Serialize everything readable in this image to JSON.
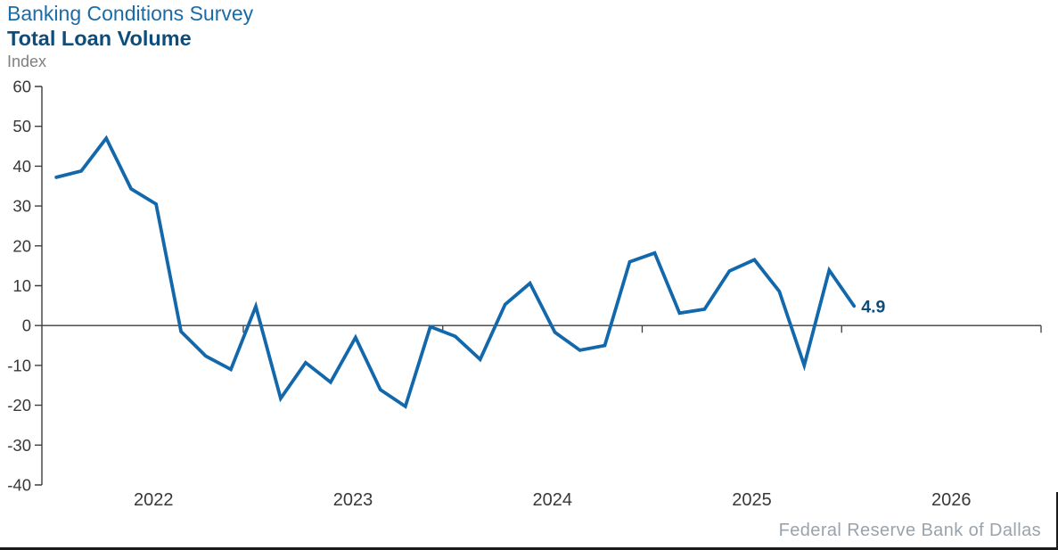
{
  "header": {
    "suptitle": "Banking Conditions Survey",
    "title": "Total Loan Volume",
    "unit_label": "Index"
  },
  "footer": {
    "source": "Federal Reserve Bank of Dallas"
  },
  "colors": {
    "suptitle": "#1b6ba7",
    "title": "#0e4d7a",
    "unit_text": "#7f7f7f",
    "axis": "#3d3d3d",
    "tick_text": "#383838",
    "line": "#1268ab",
    "end_label": "#0e4d7a",
    "footer_text": "#9aa3ab",
    "border": "#1a1a1a"
  },
  "chart_data": {
    "type": "line",
    "title": "Total Loan Volume",
    "subtitle": "Banking Conditions Survey",
    "ylabel": "Index",
    "ylim": [
      -40,
      60
    ],
    "ytick_step": 10,
    "xlim": [
      2021.99,
      2027.0
    ],
    "xtick_years": [
      2023,
      2024,
      2025,
      2026
    ],
    "x_year_labels": [
      "2022",
      "2023",
      "2024",
      "2025",
      "2026"
    ],
    "grid": false,
    "zero_line": true,
    "legend_position": "none",
    "end_label": "4.9",
    "series": [
      {
        "name": "Total loan volume index",
        "x": [
          2022.0625,
          2022.1875,
          2022.3125,
          2022.4375,
          2022.5625,
          2022.6875,
          2022.8125,
          2022.9375,
          2023.0625,
          2023.1875,
          2023.3125,
          2023.4375,
          2023.5625,
          2023.6875,
          2023.8125,
          2023.9375,
          2024.0625,
          2024.1875,
          2024.3125,
          2024.4375,
          2024.5625,
          2024.6875,
          2024.8125,
          2024.9375,
          2025.0625,
          2025.1875,
          2025.3125,
          2025.4375,
          2025.5625,
          2025.6875,
          2025.8125,
          2025.9375,
          2026.0625
        ],
        "values": [
          37.2,
          38.8,
          47.0,
          34.3,
          30.5,
          -1.5,
          -7.7,
          -11.0,
          4.8,
          -18.3,
          -9.3,
          -14.2,
          -3.0,
          -16.1,
          -20.3,
          -0.3,
          -2.7,
          -8.5,
          5.3,
          10.6,
          -1.7,
          -6.2,
          -5.0,
          16.0,
          18.2,
          3.1,
          4.1,
          13.7,
          16.5,
          8.6,
          -10.0,
          13.9,
          4.9
        ]
      }
    ]
  }
}
